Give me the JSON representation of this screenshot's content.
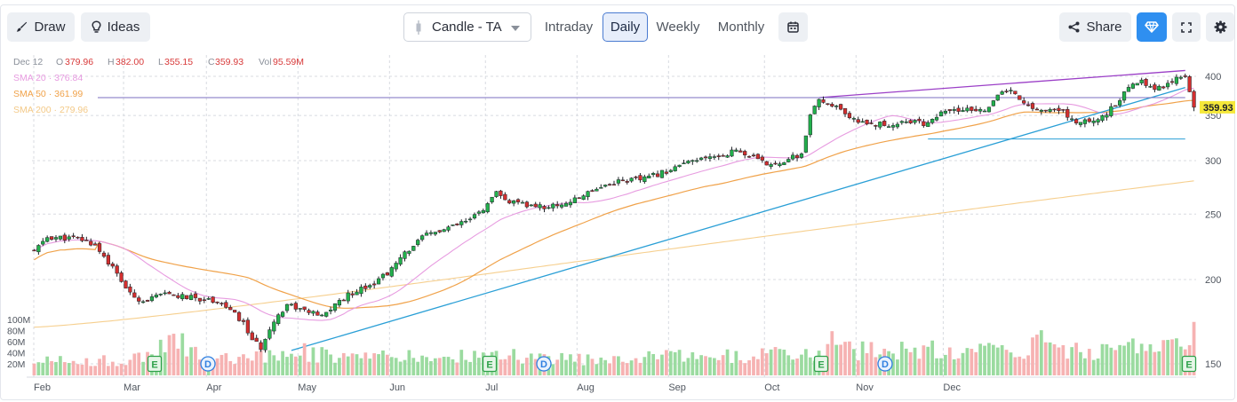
{
  "toolbar": {
    "draw_label": "Draw",
    "ideas_label": "Ideas",
    "chart_type_label": "Candle - TA",
    "periods": [
      "Intraday",
      "Daily",
      "Weekly",
      "Monthly"
    ],
    "active_period": "Daily",
    "share_label": "Share",
    "icons": [
      "brush-icon",
      "bulb-icon",
      "candle-icon",
      "chevron-down-icon",
      "calendar-icon",
      "share-icon",
      "diamond-icon",
      "expand-icon",
      "gear-icon"
    ]
  },
  "legend": {
    "date": "Dec 12",
    "open_label": "O",
    "open": "379.96",
    "high_label": "H",
    "high": "382.00",
    "low_label": "L",
    "low": "355.15",
    "close_label": "C",
    "close": "359.93",
    "vol_label": "Vol",
    "vol": "95.59M",
    "sma20": "SMA 20 · 376.84",
    "sma50": "SMA 50 · 361.99",
    "sma200": "SMA 200 · 279.96"
  },
  "chart_data": {
    "type": "candlestick",
    "y_ticks": [
      "400",
      "350",
      "300",
      "250",
      "200",
      "150"
    ],
    "y_range": [
      130,
      420
    ],
    "y_scale": "log",
    "vol_ticks": [
      "100M",
      "80M",
      "60M",
      "40M",
      "20M"
    ],
    "x_ticks": [
      "Feb",
      "Mar",
      "Apr",
      "May",
      "Jun",
      "Jul",
      "Aug",
      "Sep",
      "Oct",
      "Nov",
      "Dec"
    ],
    "last_price": "359.93",
    "colors": {
      "up": "#22b14c",
      "down": "#d32f2f",
      "sma20": "#e79be0",
      "sma50": "#f0a24a",
      "sma200": "#f6cf8e",
      "trend": "#2a9fd6",
      "channel": "#9b3fc7",
      "level": "#7b6fc0"
    },
    "events": [
      {
        "label": "E",
        "type": "earnings",
        "month": "Mar"
      },
      {
        "label": "D",
        "type": "dividend",
        "month": "Mar"
      },
      {
        "label": "E",
        "type": "earnings",
        "month": "Jun"
      },
      {
        "label": "D",
        "type": "dividend",
        "month": "Jun"
      },
      {
        "label": "E",
        "type": "earnings",
        "month": "Sep"
      },
      {
        "label": "D",
        "type": "dividend",
        "month": "Sep"
      },
      {
        "label": "E",
        "type": "earnings",
        "month": "Dec"
      }
    ],
    "price_path": [
      [
        0,
        220
      ],
      [
        3,
        231
      ],
      [
        10,
        230
      ],
      [
        14,
        225
      ],
      [
        18,
        208
      ],
      [
        22,
        190
      ],
      [
        25,
        186
      ],
      [
        30,
        190
      ],
      [
        36,
        188
      ],
      [
        42,
        186
      ],
      [
        45,
        180
      ],
      [
        48,
        172
      ],
      [
        50,
        163
      ],
      [
        52,
        158
      ],
      [
        54,
        170
      ],
      [
        58,
        184
      ],
      [
        62,
        180
      ],
      [
        66,
        176
      ],
      [
        70,
        186
      ],
      [
        74,
        193
      ],
      [
        78,
        198
      ],
      [
        82,
        207
      ],
      [
        86,
        222
      ],
      [
        90,
        233
      ],
      [
        95,
        238
      ],
      [
        100,
        245
      ],
      [
        104,
        258
      ],
      [
        106,
        268
      ],
      [
        108,
        262
      ],
      [
        112,
        258
      ],
      [
        118,
        256
      ],
      [
        124,
        262
      ],
      [
        128,
        272
      ],
      [
        134,
        280
      ],
      [
        140,
        282
      ],
      [
        144,
        288
      ],
      [
        148,
        295
      ],
      [
        152,
        300
      ],
      [
        156,
        304
      ],
      [
        158,
        306
      ],
      [
        161,
        311
      ],
      [
        164,
        305
      ],
      [
        168,
        296
      ],
      [
        172,
        300
      ],
      [
        176,
        306
      ],
      [
        178,
        350
      ],
      [
        180,
        367
      ],
      [
        183,
        364
      ],
      [
        187,
        345
      ],
      [
        192,
        341
      ],
      [
        196,
        338
      ],
      [
        200,
        344
      ],
      [
        204,
        340
      ],
      [
        208,
        352
      ],
      [
        212,
        357
      ],
      [
        216,
        355
      ],
      [
        218,
        358
      ],
      [
        220,
        366
      ],
      [
        222,
        380
      ],
      [
        225,
        378
      ],
      [
        228,
        360
      ],
      [
        232,
        356
      ],
      [
        236,
        355
      ],
      [
        239,
        340
      ],
      [
        242,
        344
      ],
      [
        245,
        348
      ],
      [
        248,
        363
      ],
      [
        251,
        383
      ],
      [
        254,
        395
      ],
      [
        257,
        383
      ],
      [
        260,
        390
      ],
      [
        262,
        400
      ],
      [
        264,
        402
      ],
      [
        265,
        380
      ],
      [
        266,
        360
      ]
    ],
    "volume_path": [
      [
        0,
        28
      ],
      [
        20,
        26
      ],
      [
        28,
        45
      ],
      [
        32,
        68
      ],
      [
        40,
        30
      ],
      [
        52,
        38
      ],
      [
        58,
        50
      ],
      [
        70,
        32
      ],
      [
        100,
        35
      ],
      [
        104,
        38
      ],
      [
        120,
        30
      ],
      [
        180,
        40
      ],
      [
        182,
        62
      ],
      [
        190,
        45
      ],
      [
        228,
        50
      ],
      [
        230,
        62
      ],
      [
        240,
        42
      ],
      [
        252,
        58
      ],
      [
        262,
        50
      ],
      [
        266,
        95
      ]
    ]
  }
}
